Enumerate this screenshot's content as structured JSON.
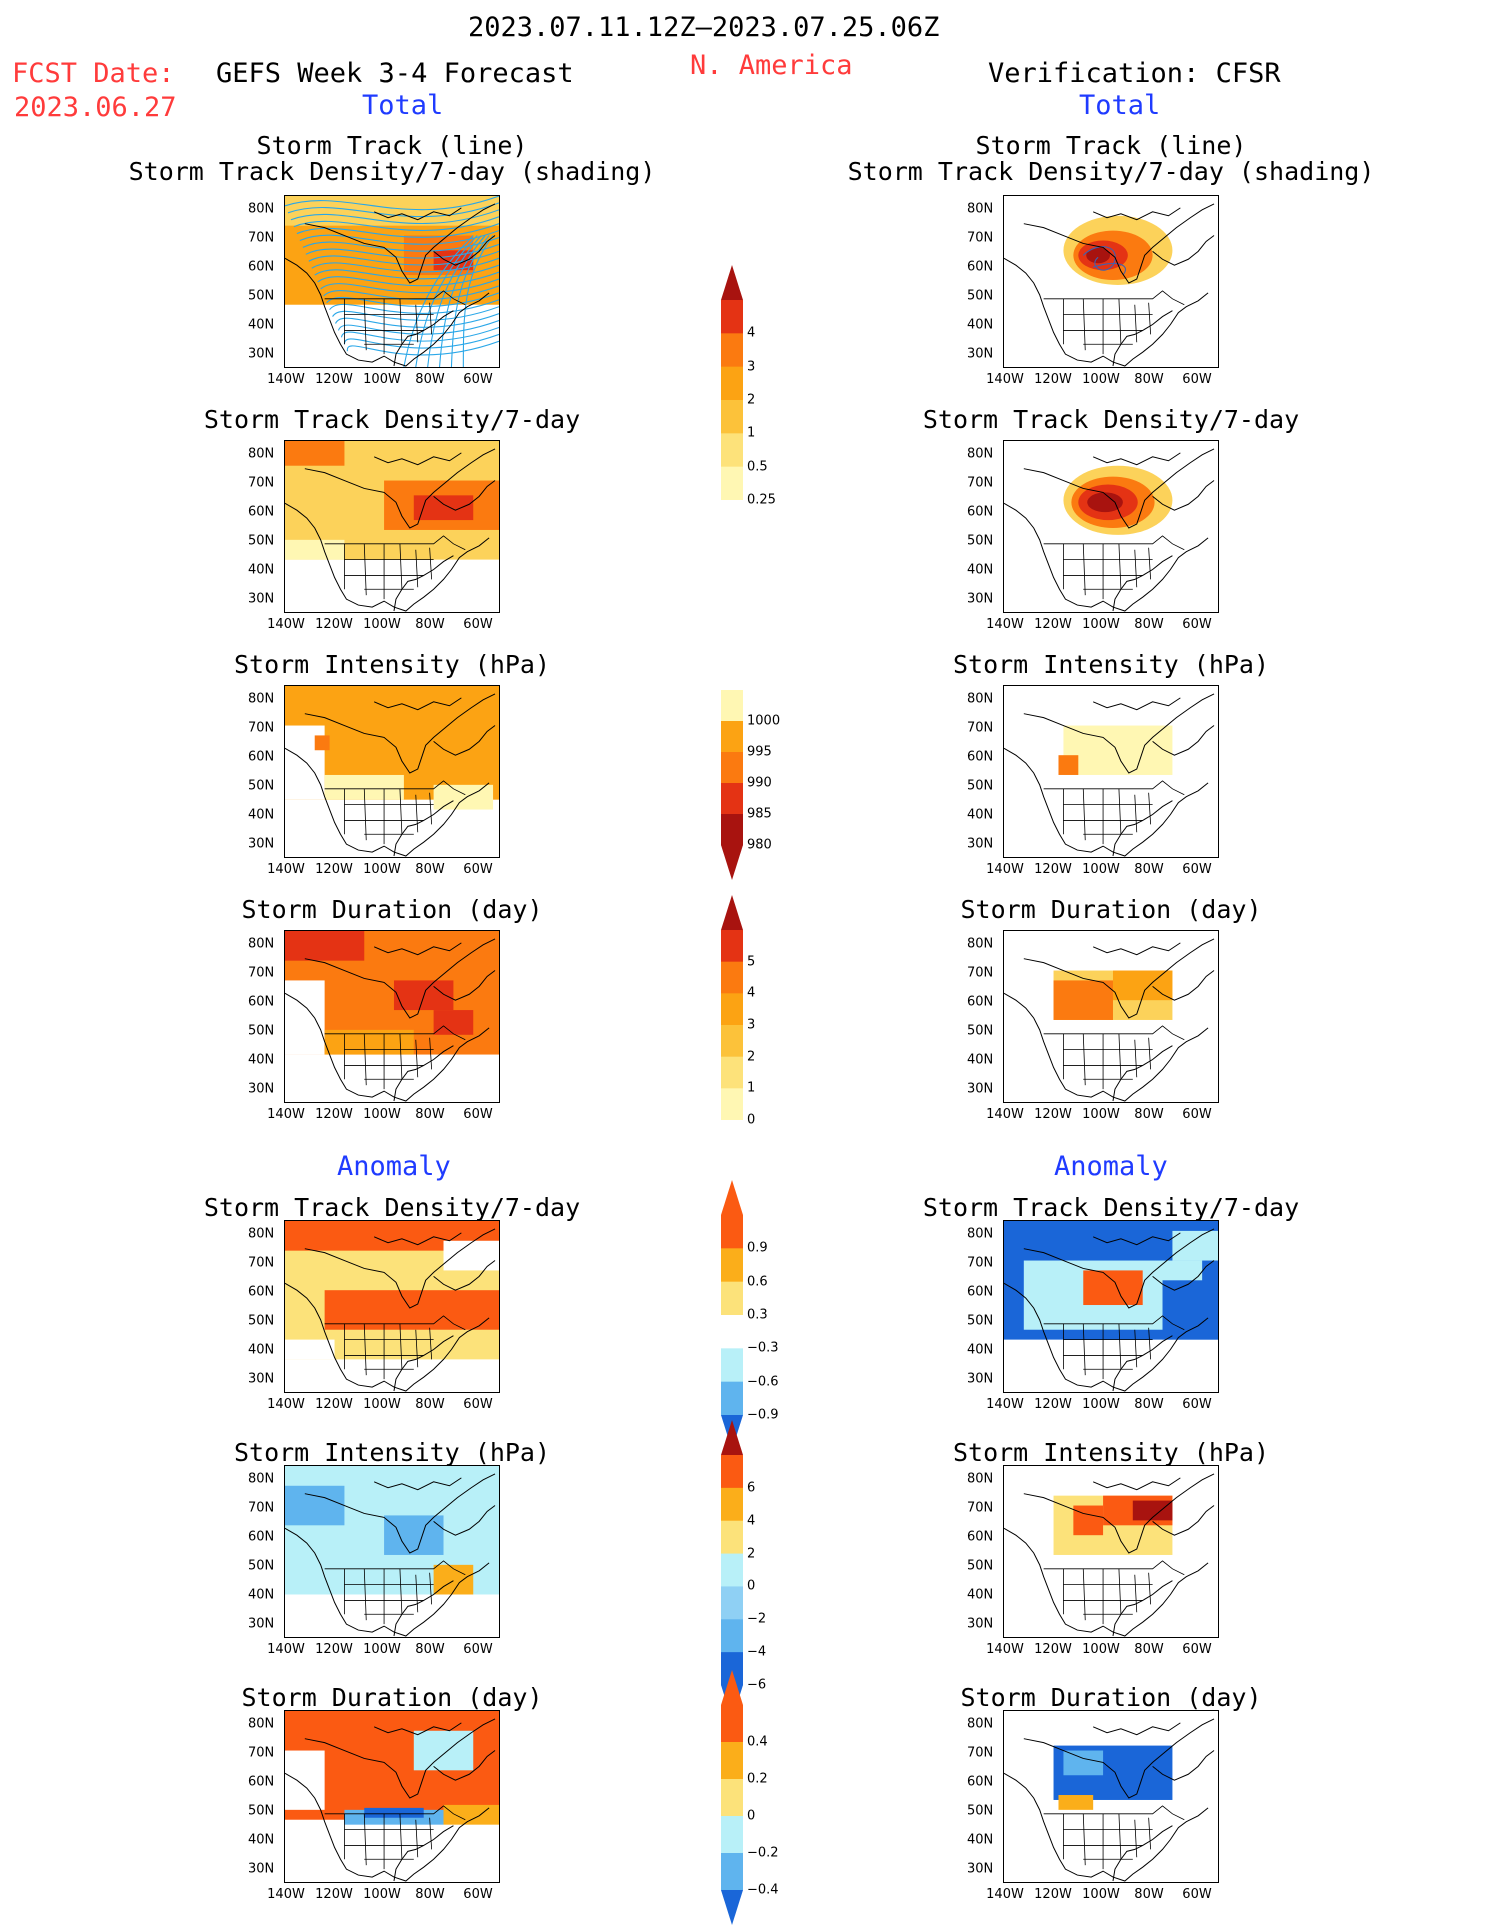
{
  "header": {
    "date_range": "2023.07.11.12Z–2023.07.25.06Z",
    "fcst_label": "FCST Date:",
    "fcst_date": "2023.06.27",
    "model_title": "GEFS Week 3-4 Forecast",
    "region": "N. America",
    "verification_title": "Verification: CFSR",
    "total_left": "Total",
    "total_right": "Total",
    "anomaly_left": "Anomaly",
    "anomaly_right": "Anomaly"
  },
  "panel_titles": {
    "track_line": "Storm Track (line)",
    "track_shading": "Storm Track Density/7-day (shading)",
    "density": "Storm Track Density/7-day",
    "intensity": "Storm Intensity (hPa)",
    "duration": "Storm Duration (day)"
  },
  "axes": {
    "y_ticks": [
      "80N",
      "70N",
      "60N",
      "50N",
      "40N",
      "30N"
    ],
    "x_ticks": [
      "140W",
      "120W",
      "100W",
      "80W",
      "60W"
    ]
  },
  "colors": {
    "positive": [
      "#fff7b3",
      "#fcd25a",
      "#fca313",
      "#fb7a10",
      "#e43314",
      "#a8130f"
    ],
    "anomaly_pos": [
      "#fce27a",
      "#fbae1a",
      "#fb5a12"
    ],
    "anomaly_neg": [
      "#b8f0f8",
      "#5fb4ee",
      "#1a66d8"
    ]
  },
  "chart_data": [
    {
      "type": "heatmap",
      "panel": "forecast-total-track",
      "title": "Storm Track (line) / Storm Track Density/7-day (shading)",
      "ylim": [
        25,
        85
      ],
      "xlim": [
        -140,
        -55
      ]
    },
    {
      "type": "heatmap",
      "panel": "verification-total-track",
      "title": "Storm Track (line) / Storm Track Density/7-day (shading)",
      "ylim": [
        25,
        85
      ],
      "xlim": [
        -140,
        -55
      ]
    },
    {
      "type": "heatmap",
      "panel": "forecast-total-density",
      "title": "Storm Track Density/7-day",
      "ylim": [
        25,
        85
      ],
      "xlim": [
        -140,
        -55
      ]
    },
    {
      "type": "heatmap",
      "panel": "verification-total-density",
      "title": "Storm Track Density/7-day",
      "ylim": [
        25,
        85
      ],
      "xlim": [
        -140,
        -55
      ]
    },
    {
      "type": "heatmap",
      "panel": "forecast-total-intensity",
      "title": "Storm Intensity (hPa)",
      "ylim": [
        25,
        85
      ],
      "xlim": [
        -140,
        -55
      ]
    },
    {
      "type": "heatmap",
      "panel": "verification-total-intensity",
      "title": "Storm Intensity (hPa)",
      "ylim": [
        25,
        85
      ],
      "xlim": [
        -140,
        -55
      ]
    },
    {
      "type": "heatmap",
      "panel": "forecast-total-duration",
      "title": "Storm Duration (day)",
      "ylim": [
        25,
        85
      ],
      "xlim": [
        -140,
        -55
      ]
    },
    {
      "type": "heatmap",
      "panel": "verification-total-duration",
      "title": "Storm Duration (day)",
      "ylim": [
        25,
        85
      ],
      "xlim": [
        -140,
        -55
      ]
    },
    {
      "type": "heatmap",
      "panel": "forecast-anomaly-density",
      "title": "Storm Track Density/7-day",
      "ylim": [
        25,
        85
      ],
      "xlim": [
        -140,
        -55
      ]
    },
    {
      "type": "heatmap",
      "panel": "verification-anomaly-density",
      "title": "Storm Track Density/7-day",
      "ylim": [
        25,
        85
      ],
      "xlim": [
        -140,
        -55
      ]
    },
    {
      "type": "heatmap",
      "panel": "forecast-anomaly-intensity",
      "title": "Storm Intensity (hPa)",
      "ylim": [
        25,
        85
      ],
      "xlim": [
        -140,
        -55
      ]
    },
    {
      "type": "heatmap",
      "panel": "verification-anomaly-intensity",
      "title": "Storm Intensity (hPa)",
      "ylim": [
        25,
        85
      ],
      "xlim": [
        -140,
        -55
      ]
    },
    {
      "type": "heatmap",
      "panel": "forecast-anomaly-duration",
      "title": "Storm Duration (day)",
      "ylim": [
        25,
        85
      ],
      "xlim": [
        -140,
        -55
      ]
    },
    {
      "type": "heatmap",
      "panel": "verification-anomaly-duration",
      "title": "Storm Duration (day)",
      "ylim": [
        25,
        85
      ],
      "xlim": [
        -140,
        -55
      ]
    }
  ],
  "colorbars": {
    "density_total": [
      "4",
      "3",
      "2",
      "1",
      "0.5",
      "0.25"
    ],
    "intensity_total": [
      "1000",
      "995",
      "990",
      "985",
      "980"
    ],
    "duration_total": [
      "5",
      "4",
      "3",
      "2",
      "1",
      "0"
    ],
    "density_anomaly": [
      "0.9",
      "0.6",
      "0.3",
      "−0.3",
      "−0.6",
      "−0.9"
    ],
    "intensity_anomaly": [
      "6",
      "4",
      "2",
      "0",
      "−2",
      "−4",
      "−6"
    ],
    "duration_anomaly": [
      "0.4",
      "0.2",
      "0",
      "−0.2",
      "−0.4"
    ]
  }
}
